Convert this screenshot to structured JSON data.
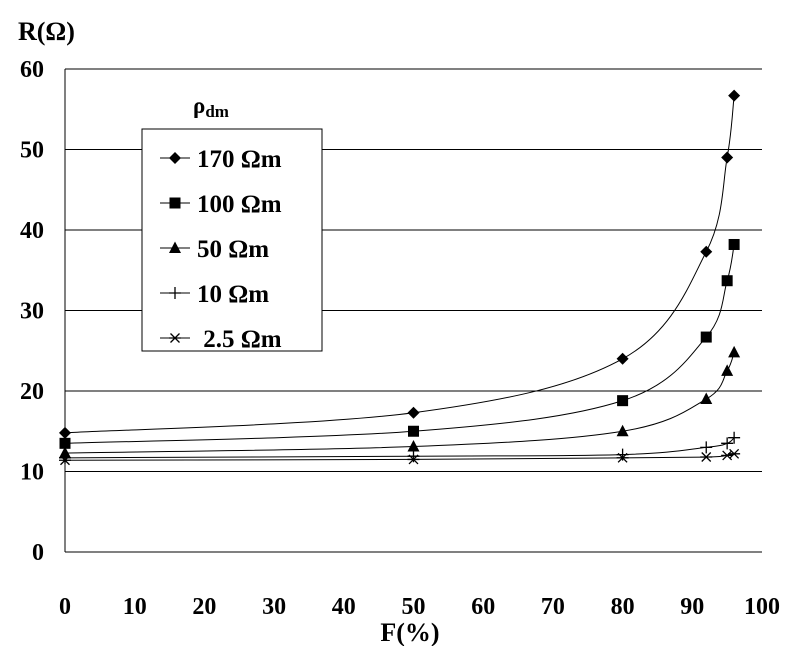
{
  "chart_data": {
    "type": "scatter",
    "title": "",
    "xlabel": "F(%)",
    "ylabel": "R(Ω)",
    "xlim": [
      0,
      100
    ],
    "ylim": [
      0,
      60
    ],
    "xticks": [
      "0",
      "10",
      "20",
      "30",
      "40",
      "50",
      "60",
      "70",
      "80",
      "90",
      "100"
    ],
    "yticks": [
      "0",
      "10",
      "20",
      "30",
      "40",
      "50",
      "60"
    ],
    "grid": "horizontal",
    "legend": {
      "title_main": "ρ",
      "title_sub": "dm",
      "placement": "top-left"
    },
    "series": [
      {
        "name": "170 Ωm",
        "marker": "diamond",
        "x": [
          0,
          50,
          80,
          92,
          95,
          96
        ],
        "y": [
          14.8,
          17.3,
          24,
          37.3,
          49,
          56.7
        ]
      },
      {
        "name": "100 Ωm",
        "marker": "square",
        "x": [
          0,
          50,
          80,
          92,
          95,
          96
        ],
        "y": [
          13.5,
          15,
          18.8,
          26.7,
          33.7,
          38.2
        ]
      },
      {
        "name": "50 Ωm",
        "marker": "triangle",
        "x": [
          0,
          50,
          80,
          92,
          95,
          96
        ],
        "y": [
          12.3,
          13.1,
          15,
          19,
          22.5,
          24.8
        ]
      },
      {
        "name": "10 Ωm",
        "marker": "plus",
        "x": [
          0,
          50,
          80,
          92,
          95,
          96
        ],
        "y": [
          11.7,
          11.9,
          12.1,
          13,
          13.5,
          14.2
        ]
      },
      {
        "name": " 2.5 Ωm",
        "marker": "asterisk",
        "x": [
          0,
          50,
          80,
          92,
          95,
          96
        ],
        "y": [
          11.4,
          11.5,
          11.7,
          11.8,
          12,
          12.2
        ]
      }
    ]
  }
}
